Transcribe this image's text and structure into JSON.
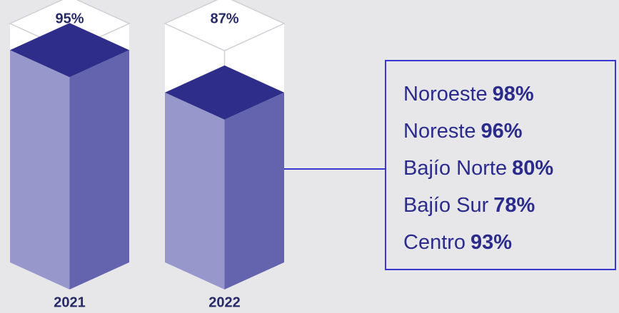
{
  "chart_data": {
    "type": "bar",
    "categories": [
      "2021",
      "2022"
    ],
    "values": [
      95,
      87
    ],
    "value_labels": [
      "95%",
      "87%"
    ],
    "ylim": [
      55,
      100
    ],
    "colors": {
      "top": "#2e2e8a",
      "left": "#9797cc",
      "right": "#6464ae",
      "empty": "#ffffff"
    },
    "callout": {
      "items": [
        {
          "label": "Noroeste",
          "value": 98,
          "value_label": "98%"
        },
        {
          "label": "Noreste",
          "value": 96,
          "value_label": "96%"
        },
        {
          "label": "Bajío Norte",
          "value": 80,
          "value_label": "80%"
        },
        {
          "label": "Bajío Sur",
          "value": 78,
          "value_label": "78%"
        },
        {
          "label": "Centro",
          "value": 93,
          "value_label": "93%"
        }
      ]
    }
  }
}
